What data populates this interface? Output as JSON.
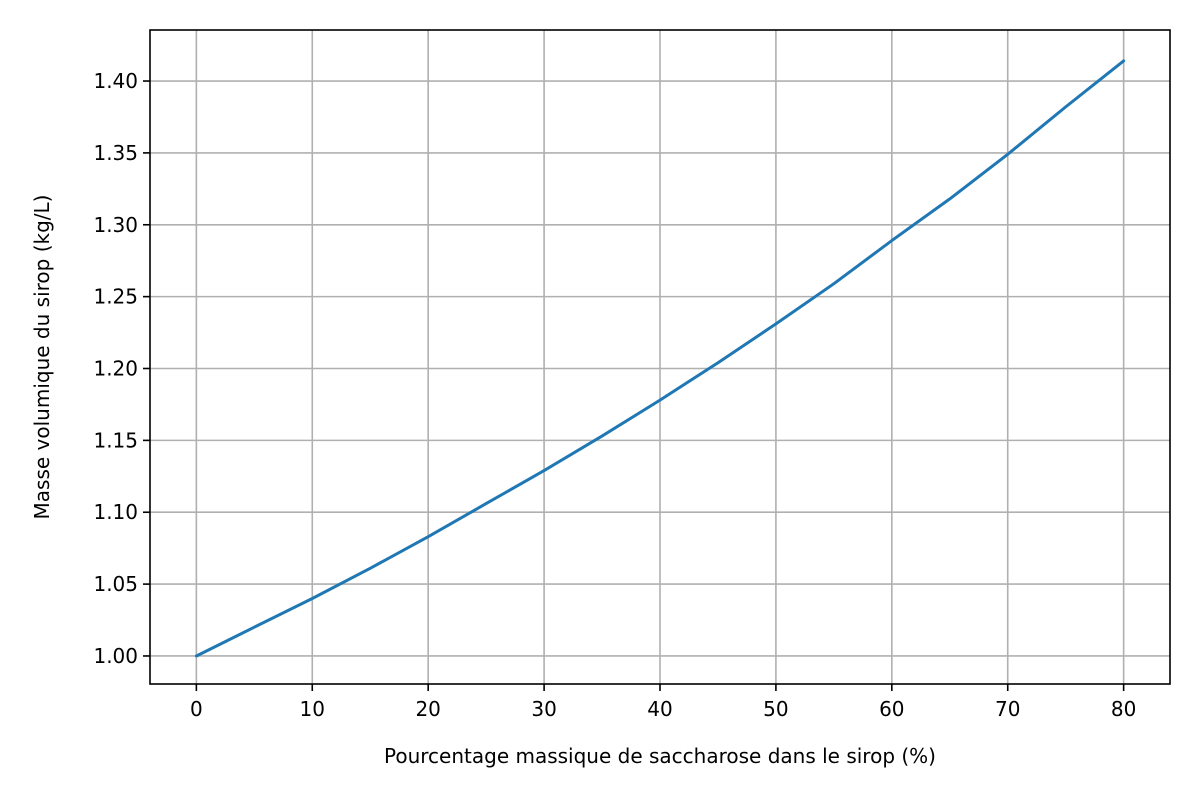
{
  "chart_data": {
    "type": "line",
    "title": "",
    "xlabel": "Pourcentage massique de saccharose dans le sirop (%)",
    "ylabel": "Masse volumique du sirop (kg/L)",
    "xlim": [
      -4,
      84
    ],
    "ylim": [
      0.9805,
      1.4355
    ],
    "xticks": [
      0,
      10,
      20,
      30,
      40,
      50,
      60,
      70,
      80
    ],
    "xtick_labels": [
      "0",
      "10",
      "20",
      "30",
      "40",
      "50",
      "60",
      "70",
      "80"
    ],
    "yticks": [
      1.0,
      1.05,
      1.1,
      1.15,
      1.2,
      1.25,
      1.3,
      1.35,
      1.4
    ],
    "ytick_labels": [
      "1.00",
      "1.05",
      "1.10",
      "1.15",
      "1.20",
      "1.25",
      "1.30",
      "1.35",
      "1.40"
    ],
    "grid": true,
    "legend": "none",
    "line_color": "#1f77b4",
    "series": [
      {
        "x": [
          0,
          5,
          10,
          15,
          20,
          25,
          30,
          35,
          40,
          45,
          50,
          55,
          60,
          65,
          70,
          75,
          80
        ],
        "values": [
          1.0,
          1.02,
          1.04,
          1.061,
          1.083,
          1.106,
          1.129,
          1.153,
          1.178,
          1.204,
          1.231,
          1.259,
          1.289,
          1.318,
          1.349,
          1.382,
          1.414
        ]
      }
    ]
  }
}
